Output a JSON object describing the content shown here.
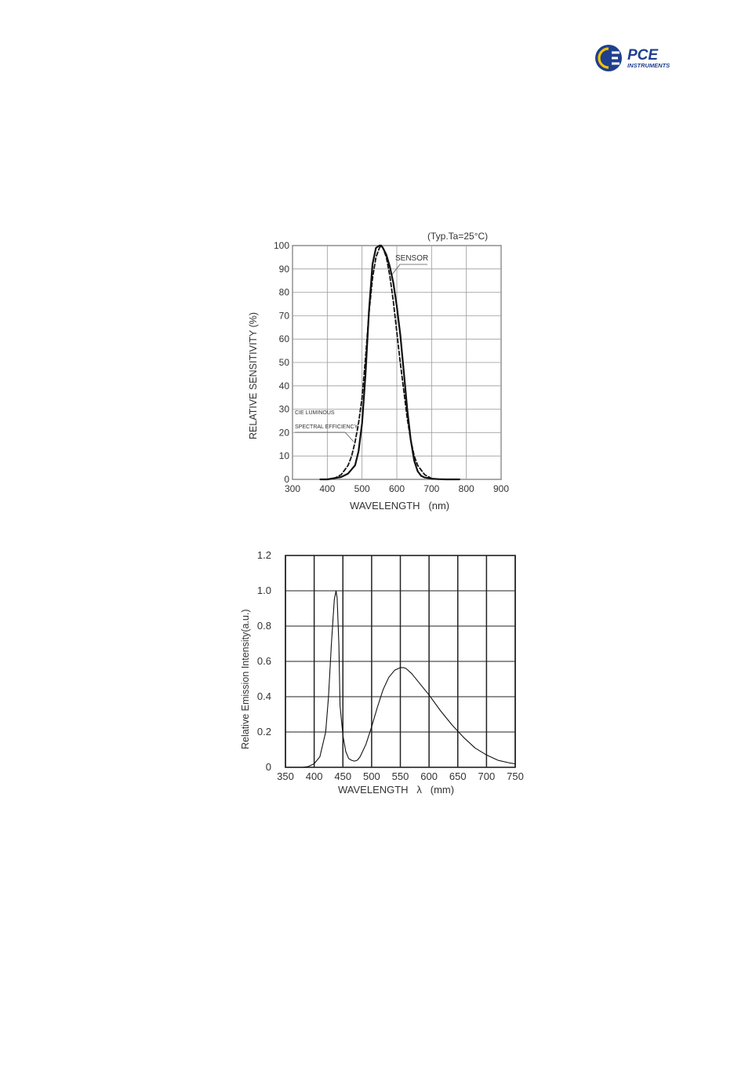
{
  "logo": {
    "name": "PCE",
    "sub": "INSTRUMENTS",
    "colors": {
      "blue": "#1f3f8f",
      "yellow": "#f2c200"
    }
  },
  "chart_data": [
    {
      "type": "line",
      "title": "",
      "annotation": "(Typ.Ta=25°C)",
      "xlabel": "WAVELENGTH   (nm)",
      "ylabel": "RELATIVE SENSITIVITY (%)",
      "xlim": [
        300,
        900
      ],
      "ylim": [
        0,
        100
      ],
      "x_ticks": [
        "300",
        "400",
        "500",
        "600",
        "700",
        "800",
        "900"
      ],
      "y_ticks": [
        "100",
        "90",
        "80",
        "70",
        "60",
        "50",
        "40",
        "30",
        "20",
        "10",
        "0"
      ],
      "grid": true,
      "series": [
        {
          "name": "SENSOR",
          "style": "solid",
          "x": [
            380,
            400,
            420,
            440,
            460,
            480,
            490,
            500,
            510,
            520,
            530,
            540,
            550,
            555,
            560,
            570,
            580,
            590,
            600,
            610,
            620,
            630,
            640,
            650,
            660,
            670,
            680,
            700,
            720,
            740,
            780
          ],
          "y": [
            0,
            0,
            0.5,
            1,
            2.5,
            6,
            12,
            24,
            45,
            72,
            92,
            99,
            100,
            100,
            99,
            96,
            91,
            84,
            74,
            62,
            46,
            30,
            17,
            8,
            3.5,
            1.5,
            0.8,
            0.3,
            0.1,
            0,
            0
          ]
        },
        {
          "name": "CIE LUMINOUS SPECTRAL EFFICIENCY",
          "style": "dashed",
          "x": [
            400,
            420,
            440,
            460,
            470,
            480,
            490,
            500,
            510,
            520,
            530,
            540,
            550,
            555,
            560,
            570,
            580,
            590,
            600,
            610,
            620,
            630,
            640,
            650,
            660,
            680,
            700
          ],
          "y": [
            0,
            0.4,
            2,
            6,
            10,
            16,
            24,
            35,
            52,
            71,
            86,
            95,
            99,
            100,
            99,
            95,
            87,
            76,
            63,
            50,
            38,
            26,
            17,
            10,
            6,
            2,
            0.4
          ]
        }
      ],
      "labels": {
        "sensor": "SENSOR",
        "cie_line1": "CIE LUMINOUS",
        "cie_line2": "SPECTRAL EFFICIENCY"
      }
    },
    {
      "type": "line",
      "title": "",
      "xlabel": "WAVELENGTH   λ   (mm)",
      "ylabel": "Relative Emission Intensity(a.u.)",
      "xlim": [
        350,
        750
      ],
      "ylim": [
        0,
        1.2
      ],
      "x_ticks": [
        "350",
        "400",
        "450",
        "500",
        "550",
        "600",
        "650",
        "700",
        "750"
      ],
      "y_ticks": [
        "1.2",
        "1.0",
        "0.8",
        "0.6",
        "0.4",
        "0.2",
        "0"
      ],
      "grid": true,
      "series": [
        {
          "name": "",
          "style": "solid",
          "x": [
            350,
            380,
            390,
            400,
            410,
            420,
            425,
            430,
            435,
            438,
            440,
            443,
            445,
            450,
            455,
            460,
            465,
            470,
            475,
            480,
            490,
            500,
            510,
            520,
            530,
            540,
            550,
            555,
            560,
            570,
            580,
            590,
            600,
            620,
            640,
            660,
            680,
            700,
            720,
            740,
            750
          ],
          "y": [
            0,
            0,
            0.005,
            0.02,
            0.06,
            0.2,
            0.4,
            0.7,
            0.95,
            1.0,
            0.96,
            0.7,
            0.35,
            0.18,
            0.09,
            0.05,
            0.04,
            0.035,
            0.04,
            0.06,
            0.13,
            0.23,
            0.34,
            0.44,
            0.51,
            0.55,
            0.565,
            0.565,
            0.56,
            0.53,
            0.49,
            0.45,
            0.41,
            0.32,
            0.24,
            0.17,
            0.11,
            0.07,
            0.04,
            0.025,
            0.02
          ]
        }
      ]
    }
  ]
}
